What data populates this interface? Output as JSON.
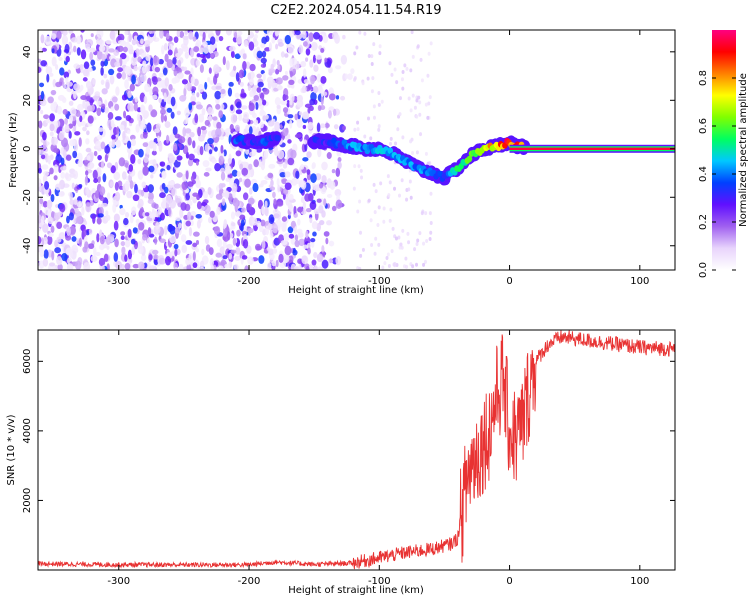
{
  "title": "C2E2.2024.054.11.54.R19",
  "chart_data": [
    {
      "type": "heatmap",
      "xlabel": "Height of straight line (km)",
      "ylabel": "Frequency (Hz)",
      "xlim": [
        -362,
        127
      ],
      "ylim": [
        -50,
        49
      ],
      "xticks": [
        -300,
        -200,
        -100,
        0,
        100
      ],
      "xtick_labels": [
        "-300",
        "-200",
        "-100",
        "0",
        "100"
      ],
      "yticks": [
        -40,
        -20,
        0,
        20,
        40
      ],
      "ytick_labels": [
        "-40",
        "-20",
        "0",
        "20",
        "40"
      ],
      "colorbar": {
        "label": "Normalized spectral amplitude",
        "range": [
          0.0,
          1.0
        ],
        "ticks": [
          0.0,
          0.2,
          0.4,
          0.6,
          0.8
        ],
        "tick_labels": [
          "0.0",
          "0.2",
          "0.4",
          "0.6",
          "0.8"
        ],
        "colormap": [
          "#ffffff",
          "#e8d4fc",
          "#a060f0",
          "#6010ff",
          "#0040ff",
          "#00c8ff",
          "#00ff60",
          "#80ff00",
          "#ffff00",
          "#ff8000",
          "#ff0000",
          "#ff0080"
        ]
      },
      "trace": {
        "x": [
          -210,
          -200,
          -190,
          -180,
          -150,
          -140,
          -130,
          -120,
          -110,
          -100,
          -90,
          -80,
          -70,
          -60,
          -50,
          -40,
          -30,
          -20,
          -10,
          -5,
          0,
          5,
          127
        ],
        "y": [
          4,
          3,
          3,
          4,
          3,
          3,
          2,
          1,
          0,
          0,
          -2,
          -5,
          -8,
          -10,
          -12,
          -8,
          -3,
          0,
          1,
          2,
          3,
          1,
          0
        ],
        "amplitude": [
          0.35,
          0.3,
          0.35,
          0.3,
          0.3,
          0.3,
          0.35,
          0.4,
          0.4,
          0.45,
          0.4,
          0.4,
          0.4,
          0.4,
          0.35,
          0.5,
          0.6,
          0.7,
          0.8,
          0.85,
          0.85,
          0.9,
          0.95
        ]
      },
      "noise_region_x": [
        -362,
        -120
      ],
      "grid": false
    },
    {
      "type": "line",
      "xlabel": "Height of straight line (km)",
      "ylabel": "SNR (10 * v/v)",
      "xlim": [
        -362,
        127
      ],
      "ylim": [
        0,
        6900
      ],
      "xticks": [
        -300,
        -200,
        -100,
        0,
        100
      ],
      "xtick_labels": [
        "-300",
        "-200",
        "-100",
        "0",
        "100"
      ],
      "yticks": [
        2000,
        4000,
        6000
      ],
      "ytick_labels": [
        "2000",
        "4000",
        "6000"
      ],
      "series": [
        {
          "color": "#e83232",
          "x": [
            -362,
            -300,
            -200,
            -180,
            -150,
            -120,
            -100,
            -80,
            -60,
            -45,
            -40,
            -36,
            -33,
            -30,
            -25,
            -20,
            -15,
            -10,
            -5,
            0,
            5,
            10,
            15,
            20,
            30,
            40,
            60,
            80,
            100,
            127
          ],
          "y": [
            180,
            150,
            150,
            230,
            160,
            200,
            350,
            500,
            600,
            750,
            900,
            1800,
            2500,
            3000,
            3300,
            3700,
            4100,
            5000,
            5500,
            4000,
            3800,
            4200,
            5200,
            6000,
            6500,
            6700,
            6600,
            6500,
            6400,
            6350
          ]
        }
      ],
      "grid": false
    }
  ]
}
